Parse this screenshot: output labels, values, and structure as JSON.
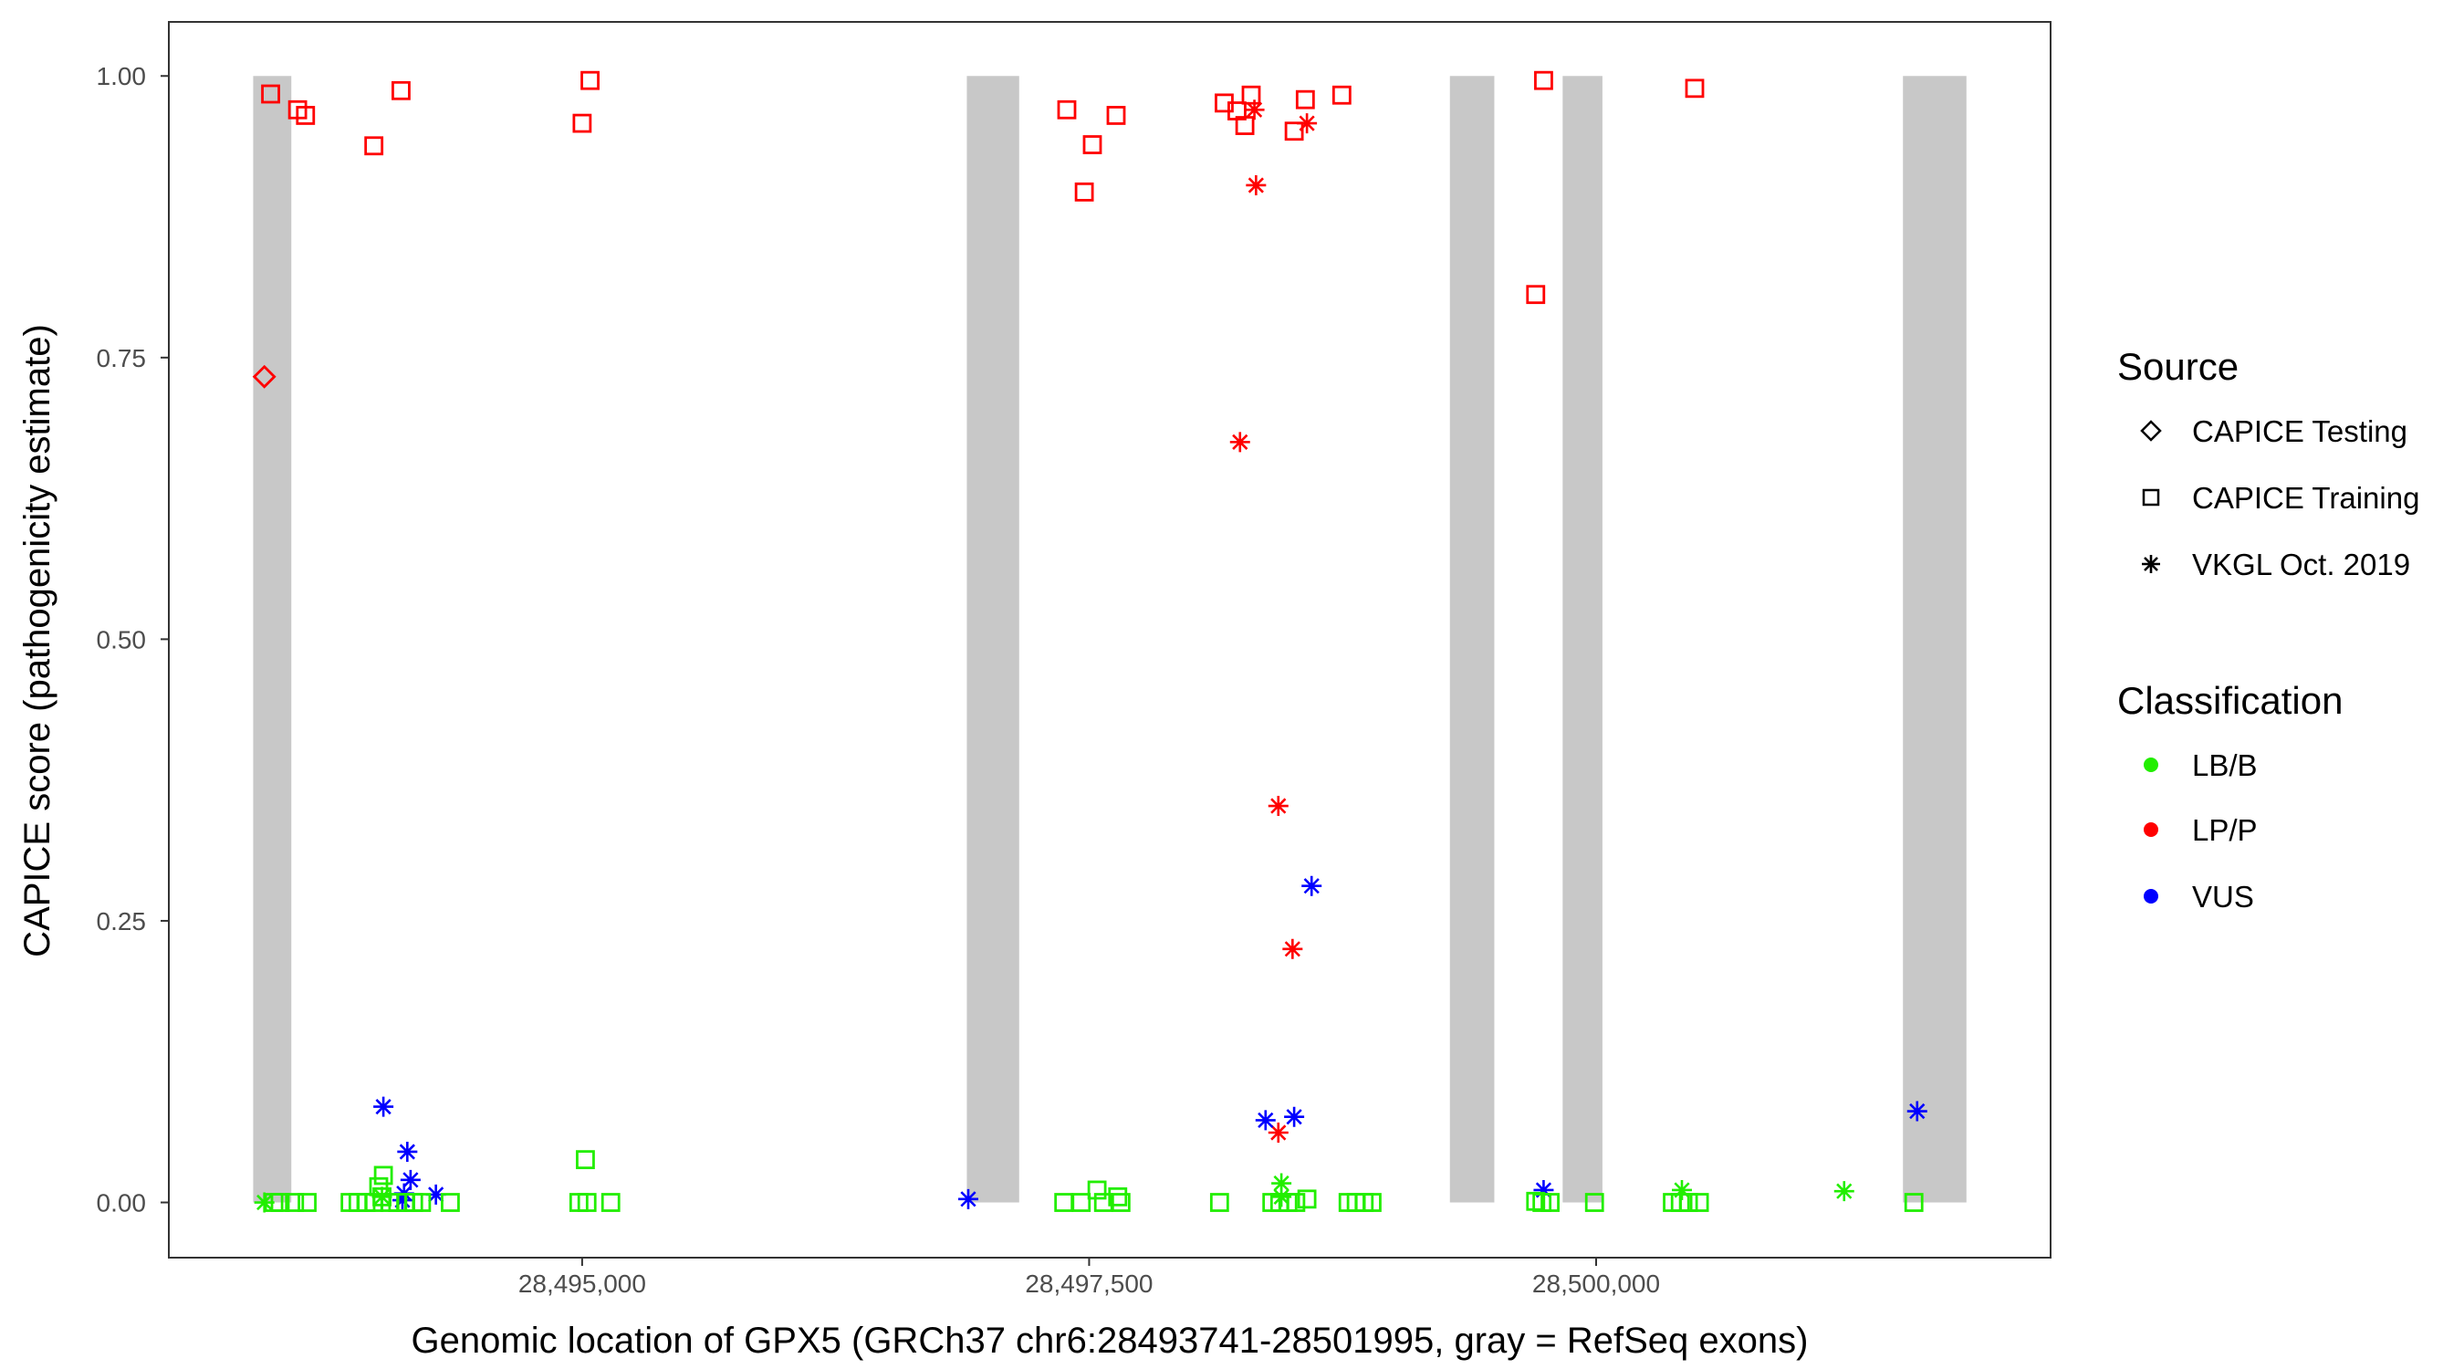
{
  "chart_data": {
    "type": "scatter",
    "xlabel": "Genomic location of GPX5 (GRCh37 chr6:28493741-28501995, gray = RefSeq exons)",
    "ylabel": "CAPICE score (pathogenicity estimate)",
    "xlim": [
      28492962,
      28502241
    ],
    "ylim": [
      -0.049,
      1.048
    ],
    "grid": false,
    "x_ticks": [
      28495000,
      28497500,
      28500000
    ],
    "x_tick_labels": [
      "28,495,000",
      "28,497,500",
      "28,500,000"
    ],
    "y_ticks": [
      0,
      0.25,
      0.5,
      0.75,
      1.0
    ],
    "y_tick_labels": [
      "0.00",
      "0.25",
      "0.50",
      "0.75",
      "1.00"
    ],
    "exons": [
      [
        28493378,
        28493566
      ],
      [
        28496897,
        28497155
      ],
      [
        28499279,
        28499498
      ],
      [
        28499835,
        28500031
      ],
      [
        28501513,
        28501826
      ]
    ],
    "legend": {
      "placement": "right",
      "source_title": "Source",
      "source_items": [
        {
          "label": "CAPICE Testing",
          "shape": "diamond"
        },
        {
          "label": "CAPICE Training",
          "shape": "square"
        },
        {
          "label": "VKGL Oct. 2019",
          "shape": "star"
        }
      ],
      "class_title": "Classification",
      "class_items": [
        {
          "label": "LB/B",
          "color": "#22ee00"
        },
        {
          "label": "LP/P",
          "color": "#ff0000"
        },
        {
          "label": "VUS",
          "color": "#0000ff"
        }
      ]
    },
    "series_fields": [
      "position",
      "score",
      "source",
      "classification"
    ],
    "points": [
      [
        28493464,
        0.984,
        "CAPICE Training",
        "LP/P"
      ],
      [
        28493597,
        0.97,
        "CAPICE Training",
        "LP/P"
      ],
      [
        28493636,
        0.965,
        "CAPICE Training",
        "LP/P"
      ],
      [
        28493973,
        0.938,
        "CAPICE Training",
        "LP/P"
      ],
      [
        28494107,
        0.987,
        "CAPICE Training",
        "LP/P"
      ],
      [
        28495000,
        0.958,
        "CAPICE Training",
        "LP/P"
      ],
      [
        28495039,
        0.996,
        "CAPICE Training",
        "LP/P"
      ],
      [
        28497390,
        0.97,
        "CAPICE Training",
        "LP/P"
      ],
      [
        28497476,
        0.897,
        "CAPICE Training",
        "LP/P"
      ],
      [
        28497516,
        0.939,
        "CAPICE Training",
        "LP/P"
      ],
      [
        28497633,
        0.965,
        "CAPICE Training",
        "LP/P"
      ],
      [
        28498166,
        0.976,
        "CAPICE Training",
        "LP/P"
      ],
      [
        28498229,
        0.969,
        "CAPICE Training",
        "LP/P"
      ],
      [
        28498268,
        0.956,
        "CAPICE Training",
        "LP/P"
      ],
      [
        28498299,
        0.983,
        "CAPICE Training",
        "LP/P"
      ],
      [
        28498511,
        0.951,
        "CAPICE Training",
        "LP/P"
      ],
      [
        28498566,
        0.979,
        "CAPICE Training",
        "LP/P"
      ],
      [
        28498746,
        0.983,
        "CAPICE Training",
        "LP/P"
      ],
      [
        28499702,
        0.806,
        "CAPICE Training",
        "LP/P"
      ],
      [
        28499741,
        0.996,
        "CAPICE Training",
        "LP/P"
      ],
      [
        28500486,
        0.989,
        "CAPICE Training",
        "LP/P"
      ],
      [
        28493433,
        0.733,
        "CAPICE Testing",
        "LP/P"
      ],
      [
        28498315,
        0.97,
        "VKGL Oct. 2019",
        "LP/P"
      ],
      [
        28498323,
        0.903,
        "VKGL Oct. 2019",
        "LP/P"
      ],
      [
        28498574,
        0.958,
        "VKGL Oct. 2019",
        "LP/P"
      ],
      [
        28498244,
        0.675,
        "VKGL Oct. 2019",
        "LP/P"
      ],
      [
        28498433,
        0.352,
        "VKGL Oct. 2019",
        "LP/P"
      ],
      [
        28498503,
        0.225,
        "VKGL Oct. 2019",
        "LP/P"
      ],
      [
        28498433,
        0.062,
        "VKGL Oct. 2019",
        "LP/P"
      ],
      [
        28494020,
        0.085,
        "VKGL Oct. 2019",
        "VUS"
      ],
      [
        28494138,
        0.045,
        "VKGL Oct. 2019",
        "VUS"
      ],
      [
        28494154,
        0.02,
        "VKGL Oct. 2019",
        "VUS"
      ],
      [
        28494122,
        0.008,
        "VKGL Oct. 2019",
        "VUS"
      ],
      [
        28494114,
        0.002,
        "VKGL Oct. 2019",
        "VUS"
      ],
      [
        28494279,
        0.007,
        "VKGL Oct. 2019",
        "VUS"
      ],
      [
        28496904,
        0.003,
        "VKGL Oct. 2019",
        "VUS"
      ],
      [
        28498597,
        0.281,
        "VKGL Oct. 2019",
        "VUS"
      ],
      [
        28498370,
        0.073,
        "VKGL Oct. 2019",
        "VUS"
      ],
      [
        28498511,
        0.076,
        "VKGL Oct. 2019",
        "VUS"
      ],
      [
        28499741,
        0.011,
        "VKGL Oct. 2019",
        "VUS"
      ],
      [
        28501583,
        0.081,
        "VKGL Oct. 2019",
        "VUS"
      ],
      [
        28493433,
        0.0,
        "VKGL Oct. 2019",
        "LB/B"
      ],
      [
        28498448,
        0.017,
        "VKGL Oct. 2019",
        "LB/B"
      ],
      [
        28498448,
        0.005,
        "VKGL Oct. 2019",
        "LB/B"
      ],
      [
        28500423,
        0.011,
        "VKGL Oct. 2019",
        "LB/B"
      ],
      [
        28501223,
        0.01,
        "VKGL Oct. 2019",
        "LB/B"
      ],
      [
        28494013,
        0.005,
        "VKGL Oct. 2019",
        "LB/B"
      ],
      [
        28493480,
        0.0,
        "CAPICE Training",
        "LB/B"
      ],
      [
        28493511,
        0.0,
        "CAPICE Training",
        "LB/B"
      ],
      [
        28493582,
        0.0,
        "CAPICE Training",
        "LB/B"
      ],
      [
        28493644,
        0.0,
        "CAPICE Training",
        "LB/B"
      ],
      [
        28493856,
        0.0,
        "CAPICE Training",
        "LB/B"
      ],
      [
        28493895,
        0.0,
        "CAPICE Training",
        "LB/B"
      ],
      [
        28493934,
        0.0,
        "CAPICE Training",
        "LB/B"
      ],
      [
        28493973,
        0.0,
        "CAPICE Training",
        "LB/B"
      ],
      [
        28494013,
        0.005,
        "CAPICE Training",
        "LB/B"
      ],
      [
        28494052,
        0.0,
        "CAPICE Training",
        "LB/B"
      ],
      [
        28494091,
        0.0,
        "CAPICE Training",
        "LB/B"
      ],
      [
        28494130,
        0.0,
        "CAPICE Training",
        "LB/B"
      ],
      [
        28494169,
        0.0,
        "CAPICE Training",
        "LB/B"
      ],
      [
        28494208,
        0.0,
        "CAPICE Training",
        "LB/B"
      ],
      [
        28494350,
        0.0,
        "CAPICE Training",
        "LB/B"
      ],
      [
        28494020,
        0.024,
        "CAPICE Training",
        "LB/B"
      ],
      [
        28493997,
        0.014,
        "CAPICE Training",
        "LB/B"
      ],
      [
        28495016,
        0.038,
        "CAPICE Training",
        "LB/B"
      ],
      [
        28494984,
        0.0,
        "CAPICE Training",
        "LB/B"
      ],
      [
        28495024,
        0.0,
        "CAPICE Training",
        "LB/B"
      ],
      [
        28495141,
        0.0,
        "CAPICE Training",
        "LB/B"
      ],
      [
        28497375,
        0.0,
        "CAPICE Training",
        "LB/B"
      ],
      [
        28497461,
        0.0,
        "CAPICE Training",
        "LB/B"
      ],
      [
        28497539,
        0.011,
        "CAPICE Training",
        "LB/B"
      ],
      [
        28497571,
        0.0,
        "CAPICE Training",
        "LB/B"
      ],
      [
        28497641,
        0.005,
        "CAPICE Training",
        "LB/B"
      ],
      [
        28497657,
        0.0,
        "CAPICE Training",
        "LB/B"
      ],
      [
        28498143,
        0.0,
        "CAPICE Training",
        "LB/B"
      ],
      [
        28498401,
        0.0,
        "CAPICE Training",
        "LB/B"
      ],
      [
        28498440,
        0.0,
        "CAPICE Training",
        "LB/B"
      ],
      [
        28498480,
        0.0,
        "CAPICE Training",
        "LB/B"
      ],
      [
        28498519,
        0.0,
        "CAPICE Training",
        "LB/B"
      ],
      [
        28498574,
        0.003,
        "CAPICE Training",
        "LB/B"
      ],
      [
        28498777,
        0.0,
        "CAPICE Training",
        "LB/B"
      ],
      [
        28498817,
        0.0,
        "CAPICE Training",
        "LB/B"
      ],
      [
        28498856,
        0.0,
        "CAPICE Training",
        "LB/B"
      ],
      [
        28498895,
        0.0,
        "CAPICE Training",
        "LB/B"
      ],
      [
        28499702,
        0.001,
        "CAPICE Training",
        "LB/B"
      ],
      [
        28499733,
        0.0,
        "CAPICE Training",
        "LB/B"
      ],
      [
        28499773,
        0.0,
        "CAPICE Training",
        "LB/B"
      ],
      [
        28499992,
        0.0,
        "CAPICE Training",
        "LB/B"
      ],
      [
        28500376,
        0.0,
        "CAPICE Training",
        "LB/B"
      ],
      [
        28500415,
        0.0,
        "CAPICE Training",
        "LB/B"
      ],
      [
        28500455,
        0.0,
        "CAPICE Training",
        "LB/B"
      ],
      [
        28500509,
        0.0,
        "CAPICE Training",
        "LB/B"
      ],
      [
        28501567,
        0.0,
        "CAPICE Training",
        "LB/B"
      ]
    ]
  }
}
